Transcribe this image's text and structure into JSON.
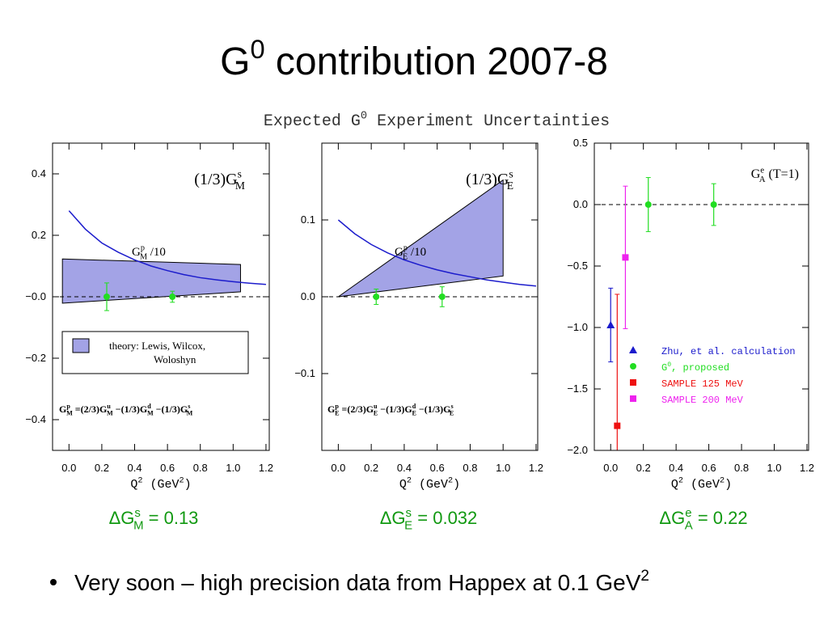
{
  "title": [
    "G",
    {
      "sup": "0"
    },
    " contribution 2007-8"
  ],
  "figure_heading": [
    "Expected G",
    {
      "sup": "0"
    },
    " Experiment Uncertainties"
  ],
  "bullet": [
    "Very soon – high precision data from Happex at 0.1 GeV",
    {
      "sup": "2"
    }
  ],
  "chart_data": [
    {
      "type": "errorbar",
      "label": [
        "(1/3)G",
        {
          "sup": "s",
          "sub": "M"
        }
      ],
      "x_label": [
        "Q",
        {
          "sup": "2"
        },
        " (GeV",
        {
          "sup": "2"
        },
        ")"
      ],
      "xlim": [
        -0.1,
        1.22
      ],
      "xticks": [
        {
          "value": 0,
          "label": "0.0"
        },
        0.2,
        0.4,
        0.6,
        0.8,
        {
          "value": 1,
          "label": "1.0"
        },
        1.2
      ],
      "ylim": [
        -0.5,
        0.5
      ],
      "yticks": [
        {
          "value": 0.4,
          "label": "0.4"
        },
        {
          "value": 0.2,
          "label": "0.2"
        },
        {
          "value": 0,
          "label": "−0.0"
        },
        {
          "value": -0.2,
          "label": "−0.2"
        },
        {
          "value": -0.4,
          "label": "−0.4"
        }
      ],
      "reference_line": 0,
      "band": {
        "name": [
          "theory: Lewis, Wilcox,",
          "Woloshyn"
        ],
        "color": "#a3a3e6",
        "x": [
          -0.04,
          1.045,
          1.045,
          -0.04
        ],
        "values": [
          0.123,
          0.105,
          0.016,
          -0.021
        ]
      },
      "curve": {
        "name": [
          "G",
          {
            "sup": "p",
            "sub": "M"
          },
          " /10"
        ],
        "color": "#1c1ccc",
        "x": [
          0,
          0.1,
          0.2,
          0.3,
          0.4,
          0.5,
          0.6,
          0.7,
          0.8,
          0.9,
          1.0,
          1.1,
          1.2
        ],
        "values": [
          0.28,
          0.22,
          0.175,
          0.145,
          0.12,
          0.1,
          0.085,
          0.072,
          0.062,
          0.055,
          0.049,
          0.044,
          0.04
        ]
      },
      "series": [
        {
          "color": "#22dd22",
          "marker": "circle",
          "x": [
            0.23,
            0.63
          ],
          "values": [
            0,
            0
          ],
          "errors": [
            0.045,
            0.018
          ]
        }
      ],
      "formula": [
        "G",
        {
          "sup": "p",
          "sub": "M"
        },
        " =(2/3)G",
        {
          "sup": "u",
          "sub": "M"
        },
        " −(1/3)G",
        {
          "sup": "d",
          "sub": "M"
        },
        " −(1/3)G",
        {
          "sup": "s",
          "sub": "M"
        }
      ],
      "annotation": [
        "ΔG",
        {
          "sup": "s",
          "sub": "M"
        },
        " = 0.13"
      ]
    },
    {
      "type": "errorbar",
      "label": [
        "(1/3)G",
        {
          "sup": "s",
          "sub": "E"
        }
      ],
      "x_label": [
        "Q",
        {
          "sup": "2"
        },
        " (GeV",
        {
          "sup": "2"
        },
        ")"
      ],
      "xlim": [
        -0.1,
        1.21
      ],
      "xticks": [
        {
          "value": 0,
          "label": "0.0"
        },
        0.2,
        0.4,
        0.6,
        0.8,
        {
          "value": 1,
          "label": "1.0"
        },
        1.2
      ],
      "ylim": [
        -0.2,
        0.2
      ],
      "yticks": [
        0.1,
        {
          "value": 0,
          "label": "0.0"
        },
        {
          "value": -0.1,
          "label": "−0.1"
        }
      ],
      "reference_line": 0,
      "band": {
        "color": "#a3a3e6",
        "x": [
          0,
          1.0,
          1.0
        ],
        "values": [
          0,
          0.152,
          0.027
        ]
      },
      "curve": {
        "name": [
          "G",
          {
            "sup": "p",
            "sub": "E"
          },
          " /10"
        ],
        "color": "#1c1ccc",
        "x": [
          0,
          0.1,
          0.2,
          0.3,
          0.4,
          0.5,
          0.6,
          0.7,
          0.8,
          0.9,
          1.0,
          1.1,
          1.2
        ],
        "values": [
          0.1,
          0.082,
          0.068,
          0.057,
          0.048,
          0.041,
          0.035,
          0.03,
          0.026,
          0.022,
          0.019,
          0.016,
          0.014
        ]
      },
      "series": [
        {
          "color": "#22dd22",
          "marker": "circle",
          "x": [
            0.23,
            0.63
          ],
          "values": [
            0,
            0
          ],
          "errors": [
            0.01,
            0.013
          ]
        }
      ],
      "formula": [
        "G",
        {
          "sup": "p",
          "sub": "E"
        },
        " =(2/3)G",
        {
          "sup": "u",
          "sub": "E"
        },
        " −(1/3)G",
        {
          "sup": "d",
          "sub": "E"
        },
        " −(1/3)G",
        {
          "sup": "s",
          "sub": "E"
        }
      ],
      "annotation": [
        "ΔG",
        {
          "sup": "s",
          "sub": "E"
        },
        " = 0.032"
      ]
    },
    {
      "type": "errorbar",
      "label": [
        "G",
        {
          "sup": "e",
          "sub": "A"
        },
        " (T=1)"
      ],
      "x_label": [
        "Q",
        {
          "sup": "2"
        },
        " (GeV",
        {
          "sup": "2"
        },
        ")"
      ],
      "xlim": [
        -0.1,
        1.21
      ],
      "xticks": [
        {
          "value": 0,
          "label": "0.0"
        },
        0.2,
        0.4,
        0.6,
        0.8,
        {
          "value": 1,
          "label": "1.0"
        },
        1.2
      ],
      "ylim": [
        -2.0,
        0.5
      ],
      "yticks": [
        0.5,
        {
          "value": 0,
          "label": "0.0"
        },
        {
          "value": -0.5,
          "label": "−0.5"
        },
        {
          "value": -1,
          "label": "−1.0"
        },
        {
          "value": -1.5,
          "label": "−1.5"
        },
        {
          "value": -2,
          "label": "−2.0"
        }
      ],
      "reference_line": 0,
      "legend": "right",
      "series": [
        {
          "name": "Zhu, et al. calculation",
          "color": "#1a1acc",
          "marker": "triangle",
          "x": [
            0.0
          ],
          "values": [
            -0.98
          ],
          "errors": [
            0.3
          ]
        },
        {
          "name": [
            "G",
            {
              "sup": "0"
            },
            ", proposed"
          ],
          "color": "#22dd22",
          "marker": "circle",
          "x": [
            0.23,
            0.63
          ],
          "values": [
            0,
            0
          ],
          "errors": [
            0.22,
            0.17
          ]
        },
        {
          "name": "SAMPLE 125 MeV",
          "color": "#ee1111",
          "marker": "square",
          "x": [
            0.04
          ],
          "values": [
            -1.8
          ],
          "errors": [
            1.07
          ]
        },
        {
          "name": "SAMPLE 200 MeV",
          "color": "#ee22ee",
          "marker": "square",
          "x": [
            0.09
          ],
          "values": [
            -0.43
          ],
          "errors": [
            0.58
          ]
        }
      ],
      "annotation": [
        "ΔG",
        {
          "sup": "e",
          "sub": "A"
        },
        " = 0.22"
      ]
    }
  ]
}
